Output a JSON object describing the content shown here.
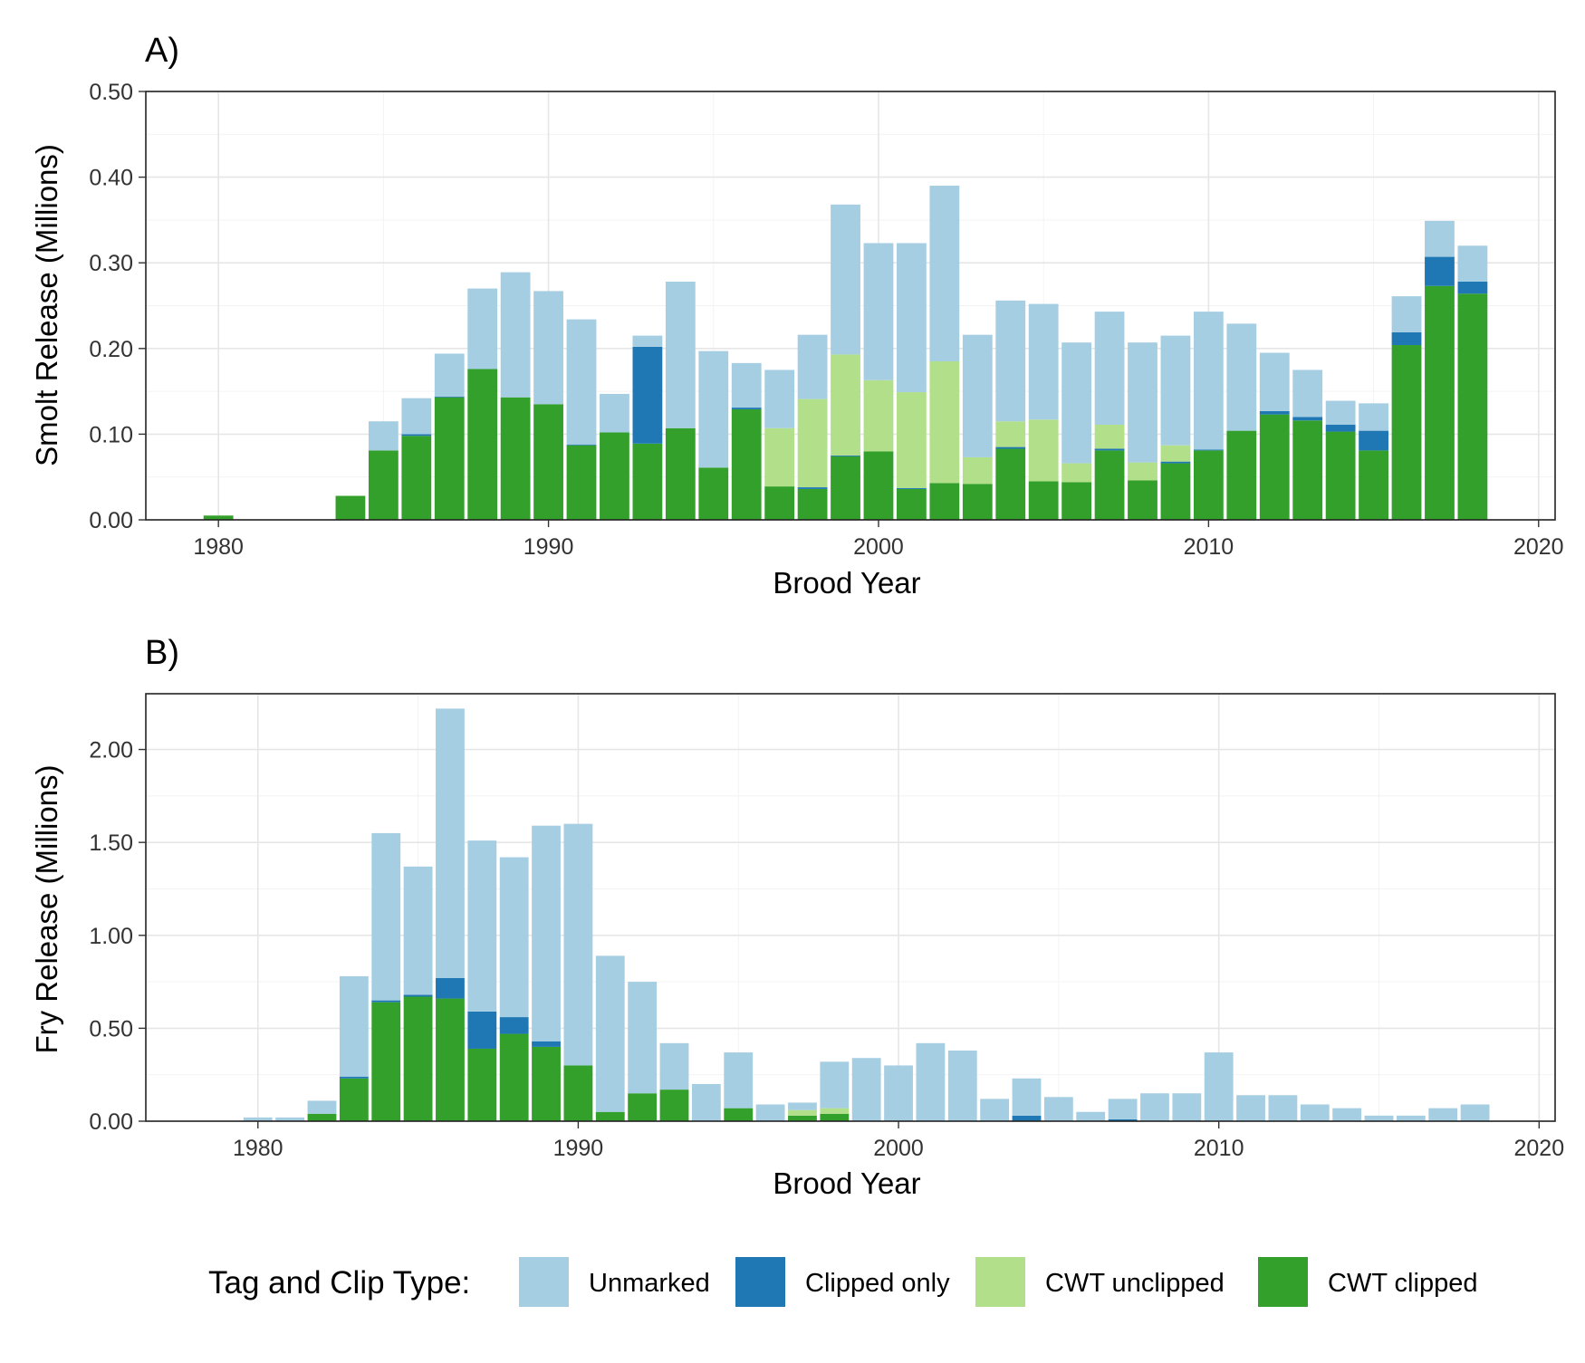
{
  "colors": {
    "Unmarked": "#a6cee3",
    "Clipped only": "#1f78b4",
    "CWT unclipped": "#b2df8a",
    "CWT clipped": "#33a02c"
  },
  "legend": {
    "title": "Tag and Clip Type:",
    "items": [
      "Unmarked",
      "Clipped only",
      "CWT unclipped",
      "CWT clipped"
    ]
  },
  "chart_data": [
    {
      "type": "bar",
      "stacked": true,
      "panel_label": "A)",
      "xlabel": "Brood Year",
      "ylabel": "Smolt Release (Millions)",
      "xlim": [
        1977.8,
        2020.5
      ],
      "ylim": [
        0,
        0.5
      ],
      "xticks": [
        1980,
        1990,
        2000,
        2010,
        2020
      ],
      "xtick_labels": [
        "1980",
        "1990",
        "2000",
        "2010",
        "2020"
      ],
      "yticks": [
        0,
        0.1,
        0.2,
        0.3,
        0.4,
        0.5
      ],
      "ytick_labels": [
        "0.00",
        "0.10",
        "0.20",
        "0.30",
        "0.40",
        "0.50"
      ],
      "grid": true,
      "x": [
        1980,
        1984,
        1985,
        1986,
        1987,
        1988,
        1989,
        1990,
        1991,
        1992,
        1993,
        1994,
        1995,
        1996,
        1997,
        1998,
        1999,
        2000,
        2001,
        2002,
        2003,
        2004,
        2005,
        2006,
        2007,
        2008,
        2009,
        2010,
        2011,
        2012,
        2013,
        2014,
        2015,
        2016,
        2017,
        2018
      ],
      "series": [
        {
          "name": "CWT clipped",
          "values": [
            0.005,
            0.028,
            0.081,
            0.098,
            0.143,
            0.176,
            0.143,
            0.135,
            0.087,
            0.102,
            0.089,
            0.107,
            0.061,
            0.129,
            0.039,
            0.036,
            0.074,
            0.08,
            0.036,
            0.043,
            0.042,
            0.083,
            0.045,
            0.044,
            0.081,
            0.046,
            0.066,
            0.081,
            0.104,
            0.123,
            0.116,
            0.103,
            0.081,
            0.204,
            0.273,
            0.264
          ]
        },
        {
          "name": "Clipped only",
          "values": [
            0,
            0,
            0,
            0.002,
            0.001,
            0,
            0,
            0,
            0.001,
            0,
            0.113,
            0,
            0,
            0.002,
            0,
            0.002,
            0.001,
            0,
            0.001,
            0,
            0,
            0.002,
            0,
            0,
            0.002,
            0,
            0.002,
            0.001,
            0,
            0.004,
            0.004,
            0.008,
            0.023,
            0.015,
            0.034,
            0.014
          ]
        },
        {
          "name": "CWT unclipped",
          "values": [
            0,
            0,
            0,
            0,
            0,
            0,
            0,
            0,
            0,
            0,
            0,
            0,
            0,
            0,
            0.068,
            0.103,
            0.118,
            0.083,
            0.112,
            0.142,
            0.031,
            0.03,
            0.072,
            0.022,
            0.028,
            0.021,
            0.019,
            0,
            0,
            0,
            0,
            0,
            0,
            0,
            0,
            0
          ]
        },
        {
          "name": "Unmarked",
          "values": [
            0,
            0,
            0.034,
            0.042,
            0.05,
            0.094,
            0.146,
            0.132,
            0.146,
            0.045,
            0.013,
            0.171,
            0.136,
            0.052,
            0.068,
            0.075,
            0.175,
            0.16,
            0.174,
            0.205,
            0.143,
            0.141,
            0.135,
            0.141,
            0.132,
            0.14,
            0.128,
            0.161,
            0.125,
            0.068,
            0.055,
            0.028,
            0.032,
            0.042,
            0.042,
            0.042
          ]
        }
      ]
    },
    {
      "type": "bar",
      "stacked": true,
      "panel_label": "B)",
      "xlabel": "Brood Year",
      "ylabel": "Fry Release (Millions)",
      "xlim": [
        1976.5,
        2020.5
      ],
      "ylim": [
        0,
        2.3
      ],
      "xticks": [
        1980,
        1990,
        2000,
        2010,
        2020
      ],
      "xtick_labels": [
        "1980",
        "1990",
        "2000",
        "2010",
        "2020"
      ],
      "yticks": [
        0,
        0.5,
        1.0,
        1.5,
        2.0
      ],
      "ytick_labels": [
        "0.00",
        "0.50",
        "1.00",
        "1.50",
        "2.00"
      ],
      "grid": true,
      "x": [
        1980,
        1981,
        1982,
        1983,
        1984,
        1985,
        1986,
        1987,
        1988,
        1989,
        1990,
        1991,
        1992,
        1993,
        1994,
        1995,
        1996,
        1997,
        1998,
        1999,
        2000,
        2001,
        2002,
        2003,
        2004,
        2005,
        2006,
        2007,
        2008,
        2009,
        2010,
        2011,
        2012,
        2013,
        2014,
        2015,
        2016,
        2017,
        2018
      ],
      "series": [
        {
          "name": "CWT clipped",
          "values": [
            0,
            0,
            0.04,
            0.23,
            0.64,
            0.67,
            0.66,
            0.39,
            0.47,
            0.4,
            0.3,
            0.05,
            0.15,
            0.17,
            0,
            0.07,
            0,
            0.03,
            0.04,
            0,
            0,
            0,
            0,
            0,
            0,
            0,
            0,
            0,
            0,
            0,
            0,
            0,
            0,
            0,
            0,
            0,
            0,
            0,
            0
          ]
        },
        {
          "name": "Clipped only",
          "values": [
            0,
            0,
            0,
            0.01,
            0.01,
            0.01,
            0.11,
            0.2,
            0.09,
            0.03,
            0,
            0,
            0,
            0,
            0,
            0,
            0,
            0,
            0,
            0,
            0,
            0,
            0,
            0,
            0.03,
            0,
            0,
            0.01,
            0,
            0,
            0,
            0,
            0,
            0,
            0,
            0,
            0,
            0,
            0
          ]
        },
        {
          "name": "CWT unclipped",
          "values": [
            0,
            0,
            0,
            0,
            0,
            0,
            0,
            0,
            0,
            0,
            0,
            0,
            0,
            0,
            0,
            0,
            0,
            0.03,
            0.03,
            0,
            0,
            0,
            0,
            0,
            0,
            0,
            0,
            0,
            0,
            0,
            0,
            0,
            0,
            0,
            0,
            0,
            0,
            0,
            0
          ]
        },
        {
          "name": "Unmarked",
          "values": [
            0.02,
            0.02,
            0.07,
            0.54,
            0.9,
            0.69,
            1.45,
            0.92,
            0.86,
            1.16,
            1.3,
            0.84,
            0.6,
            0.25,
            0.2,
            0.3,
            0.09,
            0.04,
            0.25,
            0.34,
            0.3,
            0.42,
            0.38,
            0.12,
            0.2,
            0.13,
            0.05,
            0.11,
            0.15,
            0.15,
            0.37,
            0.14,
            0.14,
            0.09,
            0.07,
            0.03,
            0.03,
            0.07,
            0.09
          ]
        }
      ]
    }
  ]
}
